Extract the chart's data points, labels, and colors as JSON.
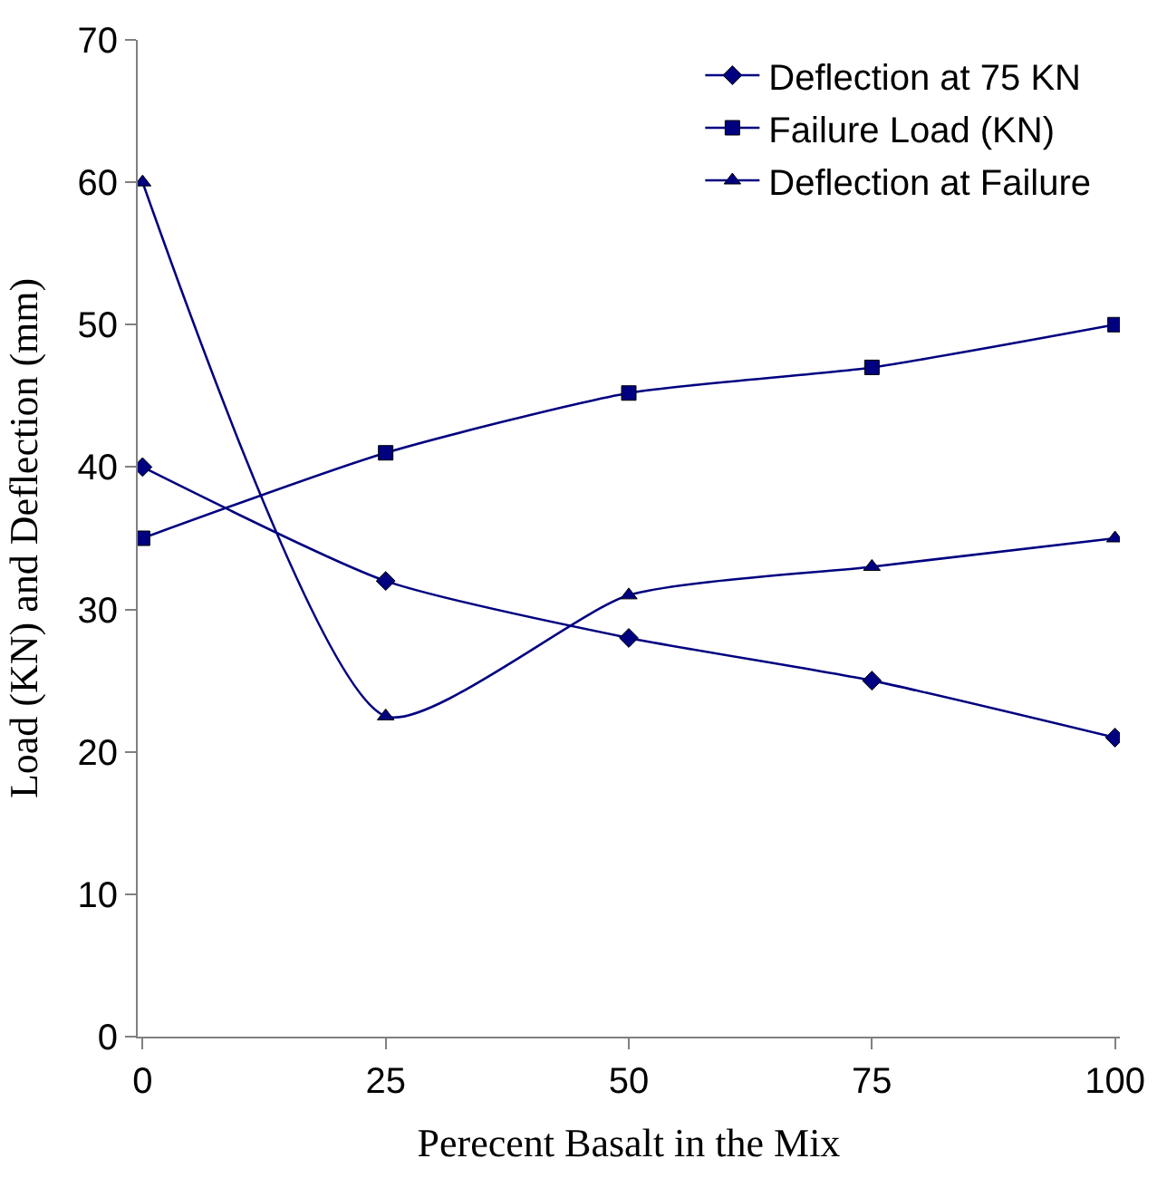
{
  "chart_data": {
    "type": "line",
    "xlabel": "Perecent Basalt in the Mix",
    "ylabel": "Load (KN) and Deflection (mm)",
    "x": [
      0,
      25,
      50,
      75,
      100
    ],
    "series": [
      {
        "name": "Deflection at 75 KN",
        "color": "#000080",
        "marker": "diamond",
        "values": [
          40,
          32,
          28,
          25,
          21
        ]
      },
      {
        "name": "Failure Load (KN)",
        "color": "#000080",
        "marker": "square",
        "values": [
          35,
          41,
          45.2,
          47,
          50
        ]
      },
      {
        "name": "Deflection at Failure",
        "color": "#000080",
        "marker": "triangle",
        "values": [
          60,
          22.5,
          31,
          33,
          35
        ]
      }
    ],
    "xlim": [
      0,
      100
    ],
    "xticks": [
      0,
      25,
      50,
      75,
      100
    ],
    "ylim": [
      0,
      70
    ],
    "yticks": [
      0,
      10,
      20,
      30,
      40,
      50,
      60,
      70
    ],
    "legend": "top right",
    "line_style": "solid"
  }
}
